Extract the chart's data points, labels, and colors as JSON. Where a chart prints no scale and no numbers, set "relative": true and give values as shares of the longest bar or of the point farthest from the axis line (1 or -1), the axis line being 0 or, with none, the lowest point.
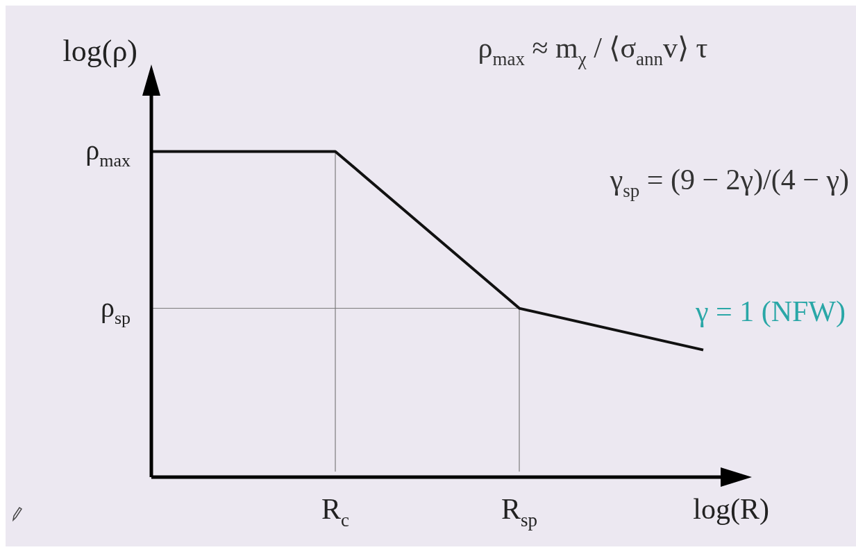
{
  "chart_data": {
    "type": "line",
    "relative": true,
    "xlabel": "log(R)",
    "ylabel": "log(ρ)",
    "categories": [
      null,
      "R$_{c}$",
      "R$_{sp}$",
      null
    ],
    "series": [
      {
        "color": "#111111",
        "values": [
          1,
          1,
          0.51,
          0.38
        ]
      },
      {
        "color": "#777777",
        "values": [
          0.51,
          0.51,
          0.51,
          null
        ]
      }
    ],
    "ref_lines": [
      {
        "axis": "x",
        "value": "R$_{c}$"
      },
      {
        "axis": "x",
        "value": "R$_{sp}$"
      }
    ],
    "annotations": [
      "ρ$_{max}$",
      "ρ$_{sp}$",
      "ρ$_{max}$ ≈ m$_{χ}$ / ⟨σ$_{ann}$v⟩ τ",
      "γ$_{sp}$ = (9 − 2γ)/(4 − γ)",
      "γ = 1 (NFW)"
    ]
  }
}
